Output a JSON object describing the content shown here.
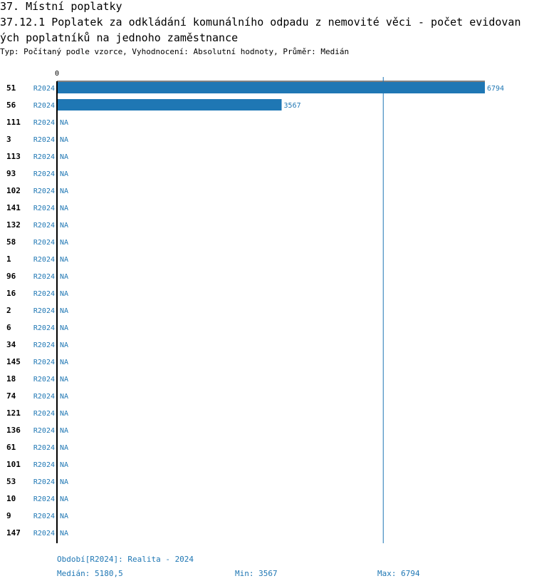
{
  "section_title": "37. Místní poplatky",
  "indicator_title": "37.12.1 Poplatek za odkládání komunálního odpadu z nemovité věci - počet evidovaných poplatníků na jednoho zaměstnance",
  "subtitle": "Typ: Počítaný podle vzorce, Vyhodnocení: Absolutní hodnoty, Průměr: Medián",
  "colors": {
    "bar": "#1f77b4",
    "label": "#1f77b4",
    "axis": "#000000"
  },
  "chart_data": {
    "type": "bar",
    "orientation": "horizontal",
    "x_tick_labels": [
      "0"
    ],
    "xlim": [
      0,
      6794
    ],
    "period": "R2024",
    "categories": [
      "51",
      "56",
      "111",
      "3",
      "113",
      "93",
      "102",
      "141",
      "132",
      "58",
      "1",
      "96",
      "16",
      "2",
      "6",
      "34",
      "145",
      "18",
      "74",
      "121",
      "136",
      "61",
      "101",
      "53",
      "10",
      "9",
      "147"
    ],
    "values": [
      6794,
      3567,
      null,
      null,
      null,
      null,
      null,
      null,
      null,
      null,
      null,
      null,
      null,
      null,
      null,
      null,
      null,
      null,
      null,
      null,
      null,
      null,
      null,
      null,
      null,
      null,
      null
    ],
    "missing_label": "NA",
    "reference_line": {
      "type": "median",
      "value": 5180.5
    }
  },
  "footer": {
    "period_legend": "Období[R2024]: Realita - 2024",
    "median": "Medián: 5180,5",
    "min": "Min: 3567",
    "max": "Max: 6794"
  }
}
